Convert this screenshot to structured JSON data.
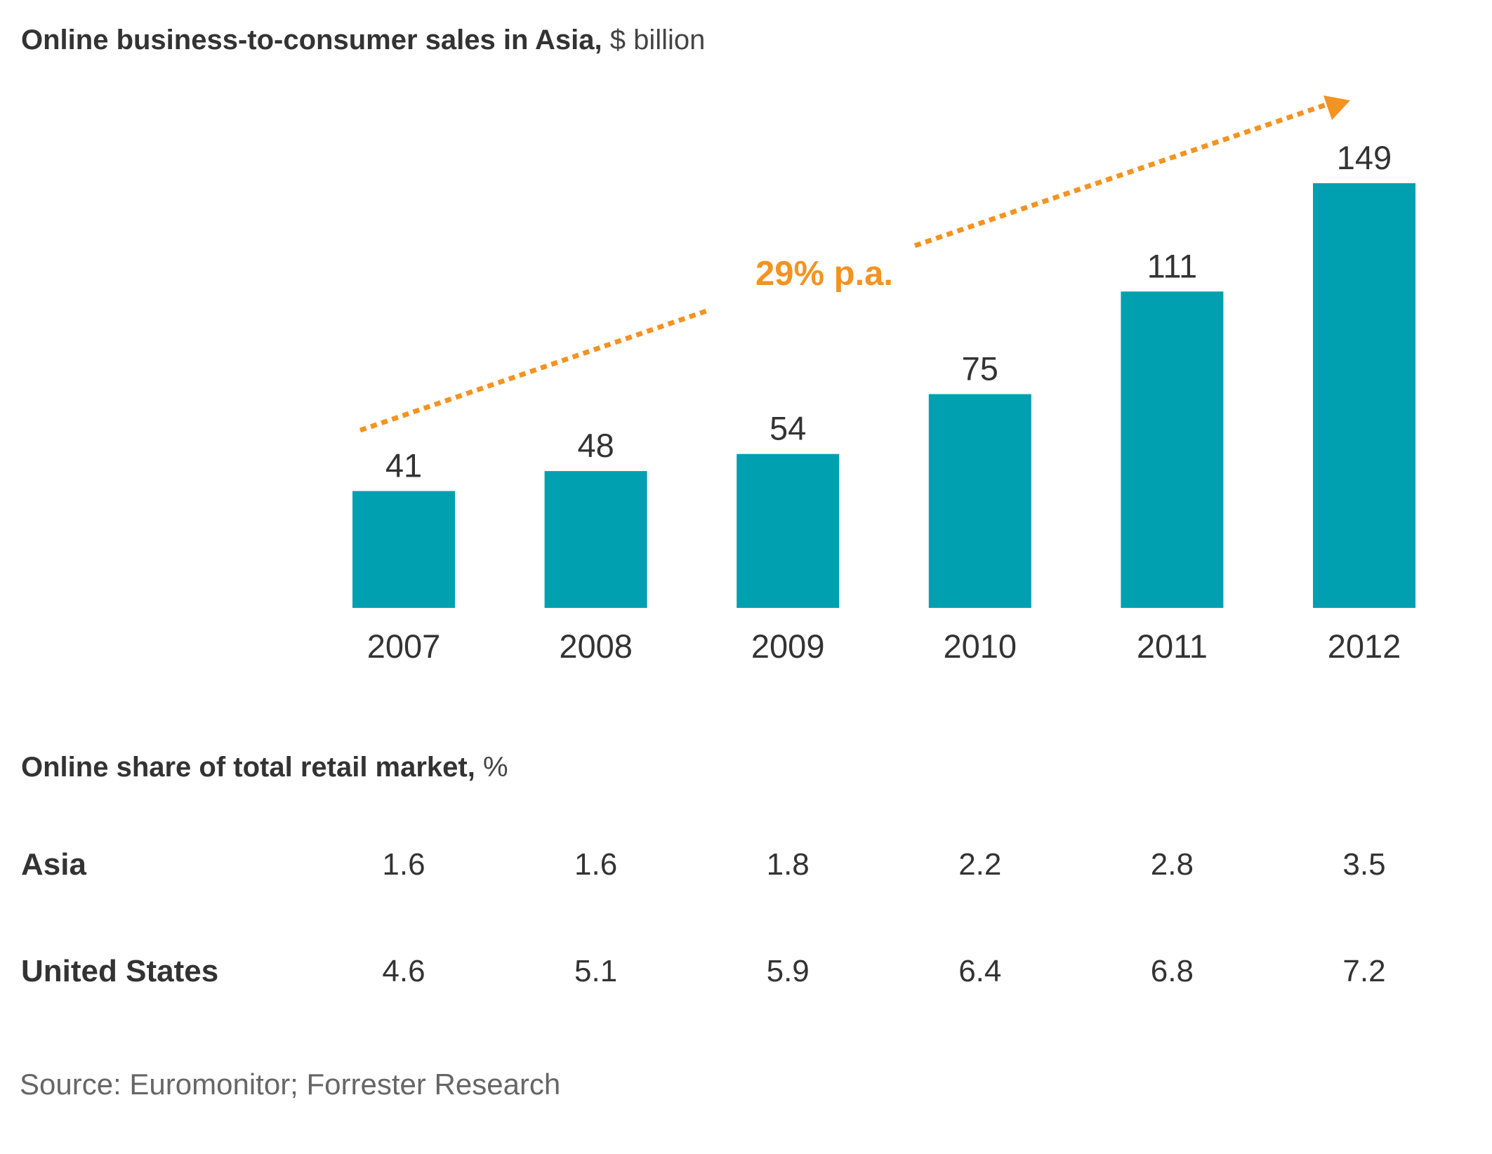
{
  "colors": {
    "bar": "#00A0B0",
    "accent": "#F39322",
    "text": "#333333",
    "source": "#666666"
  },
  "title": {
    "bold": "Online business-to-consumer sales in Asia,",
    "unit": " $ billion"
  },
  "annotation": {
    "label": "29% p.a.",
    "type": "trend-arrow",
    "from_category": "2007",
    "to_category": "2012"
  },
  "chart_data": {
    "type": "bar",
    "title": "Online business-to-consumer sales in Asia, $ billion",
    "categories": [
      "2007",
      "2008",
      "2009",
      "2010",
      "2011",
      "2012"
    ],
    "values": [
      41,
      48,
      54,
      75,
      111,
      149
    ],
    "data_labels": [
      "41",
      "48",
      "54",
      "75",
      "111",
      "149"
    ],
    "xlabel": "",
    "ylabel": "$ billion",
    "ylim": [
      0,
      149
    ],
    "grid": false,
    "legend": "none",
    "annotations": [
      "29% p.a."
    ]
  },
  "table": {
    "title_bold": "Online share of total retail market,",
    "title_unit": " %",
    "columns": [
      "2007",
      "2008",
      "2009",
      "2010",
      "2011",
      "2012"
    ],
    "rows": [
      {
        "label": "Asia",
        "values": [
          "1.6",
          "1.6",
          "1.8",
          "2.2",
          "2.8",
          "3.5"
        ]
      },
      {
        "label": "United States",
        "values": [
          "4.6",
          "5.1",
          "5.9",
          "6.4",
          "6.8",
          "7.2"
        ]
      }
    ]
  },
  "source": "Source: Euromonitor; Forrester Research"
}
